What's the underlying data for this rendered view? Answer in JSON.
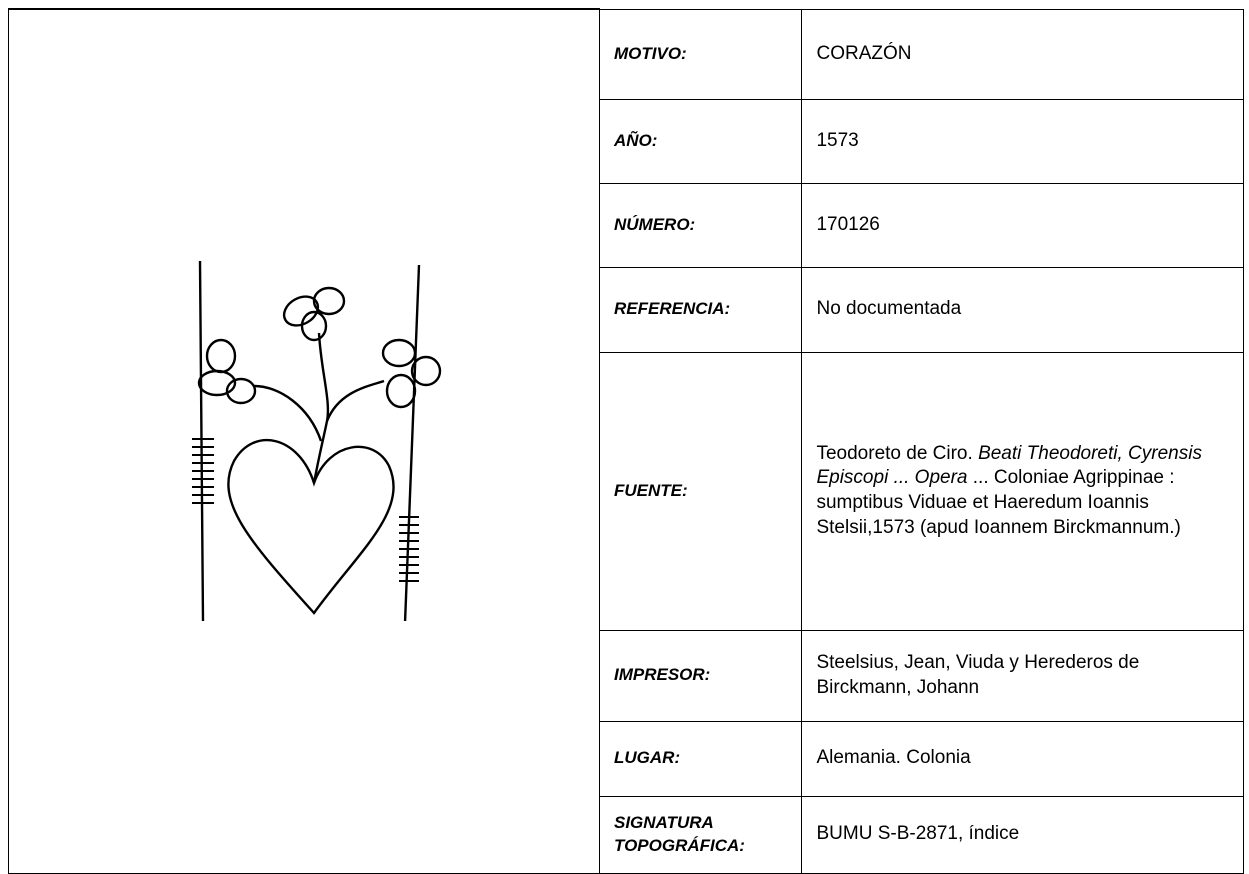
{
  "rows": [
    {
      "label": "MOTIVO:",
      "value": "CORAZÓN"
    },
    {
      "label": "AÑO:",
      "value": "1573"
    },
    {
      "label": "NÚMERO:",
      "value": "170126"
    },
    {
      "label": "REFERENCIA:",
      "value": "No documentada"
    },
    {
      "label": "FUENTE:",
      "value_parts": [
        "Teodoreto de Ciro. ",
        "Beati Theodoreti, Cyrensis Episcopi ... Opera",
        " ... Coloniae Agrippinae : sumptibus Viduae et Haeredum Ioannis Stelsii,1573 (apud Ioannem Birckmannum.)"
      ]
    },
    {
      "label": "IMPRESOR:",
      "value": "Steelsius, Jean, Viuda y Herederos de Birckmann, Johann"
    },
    {
      "label": "LUGAR:",
      "value": "Alemania. Colonia"
    },
    {
      "label": "SIGNATURA TOPOGRÁFICA:",
      "value": "BUMU S-B-2871, índice"
    }
  ]
}
